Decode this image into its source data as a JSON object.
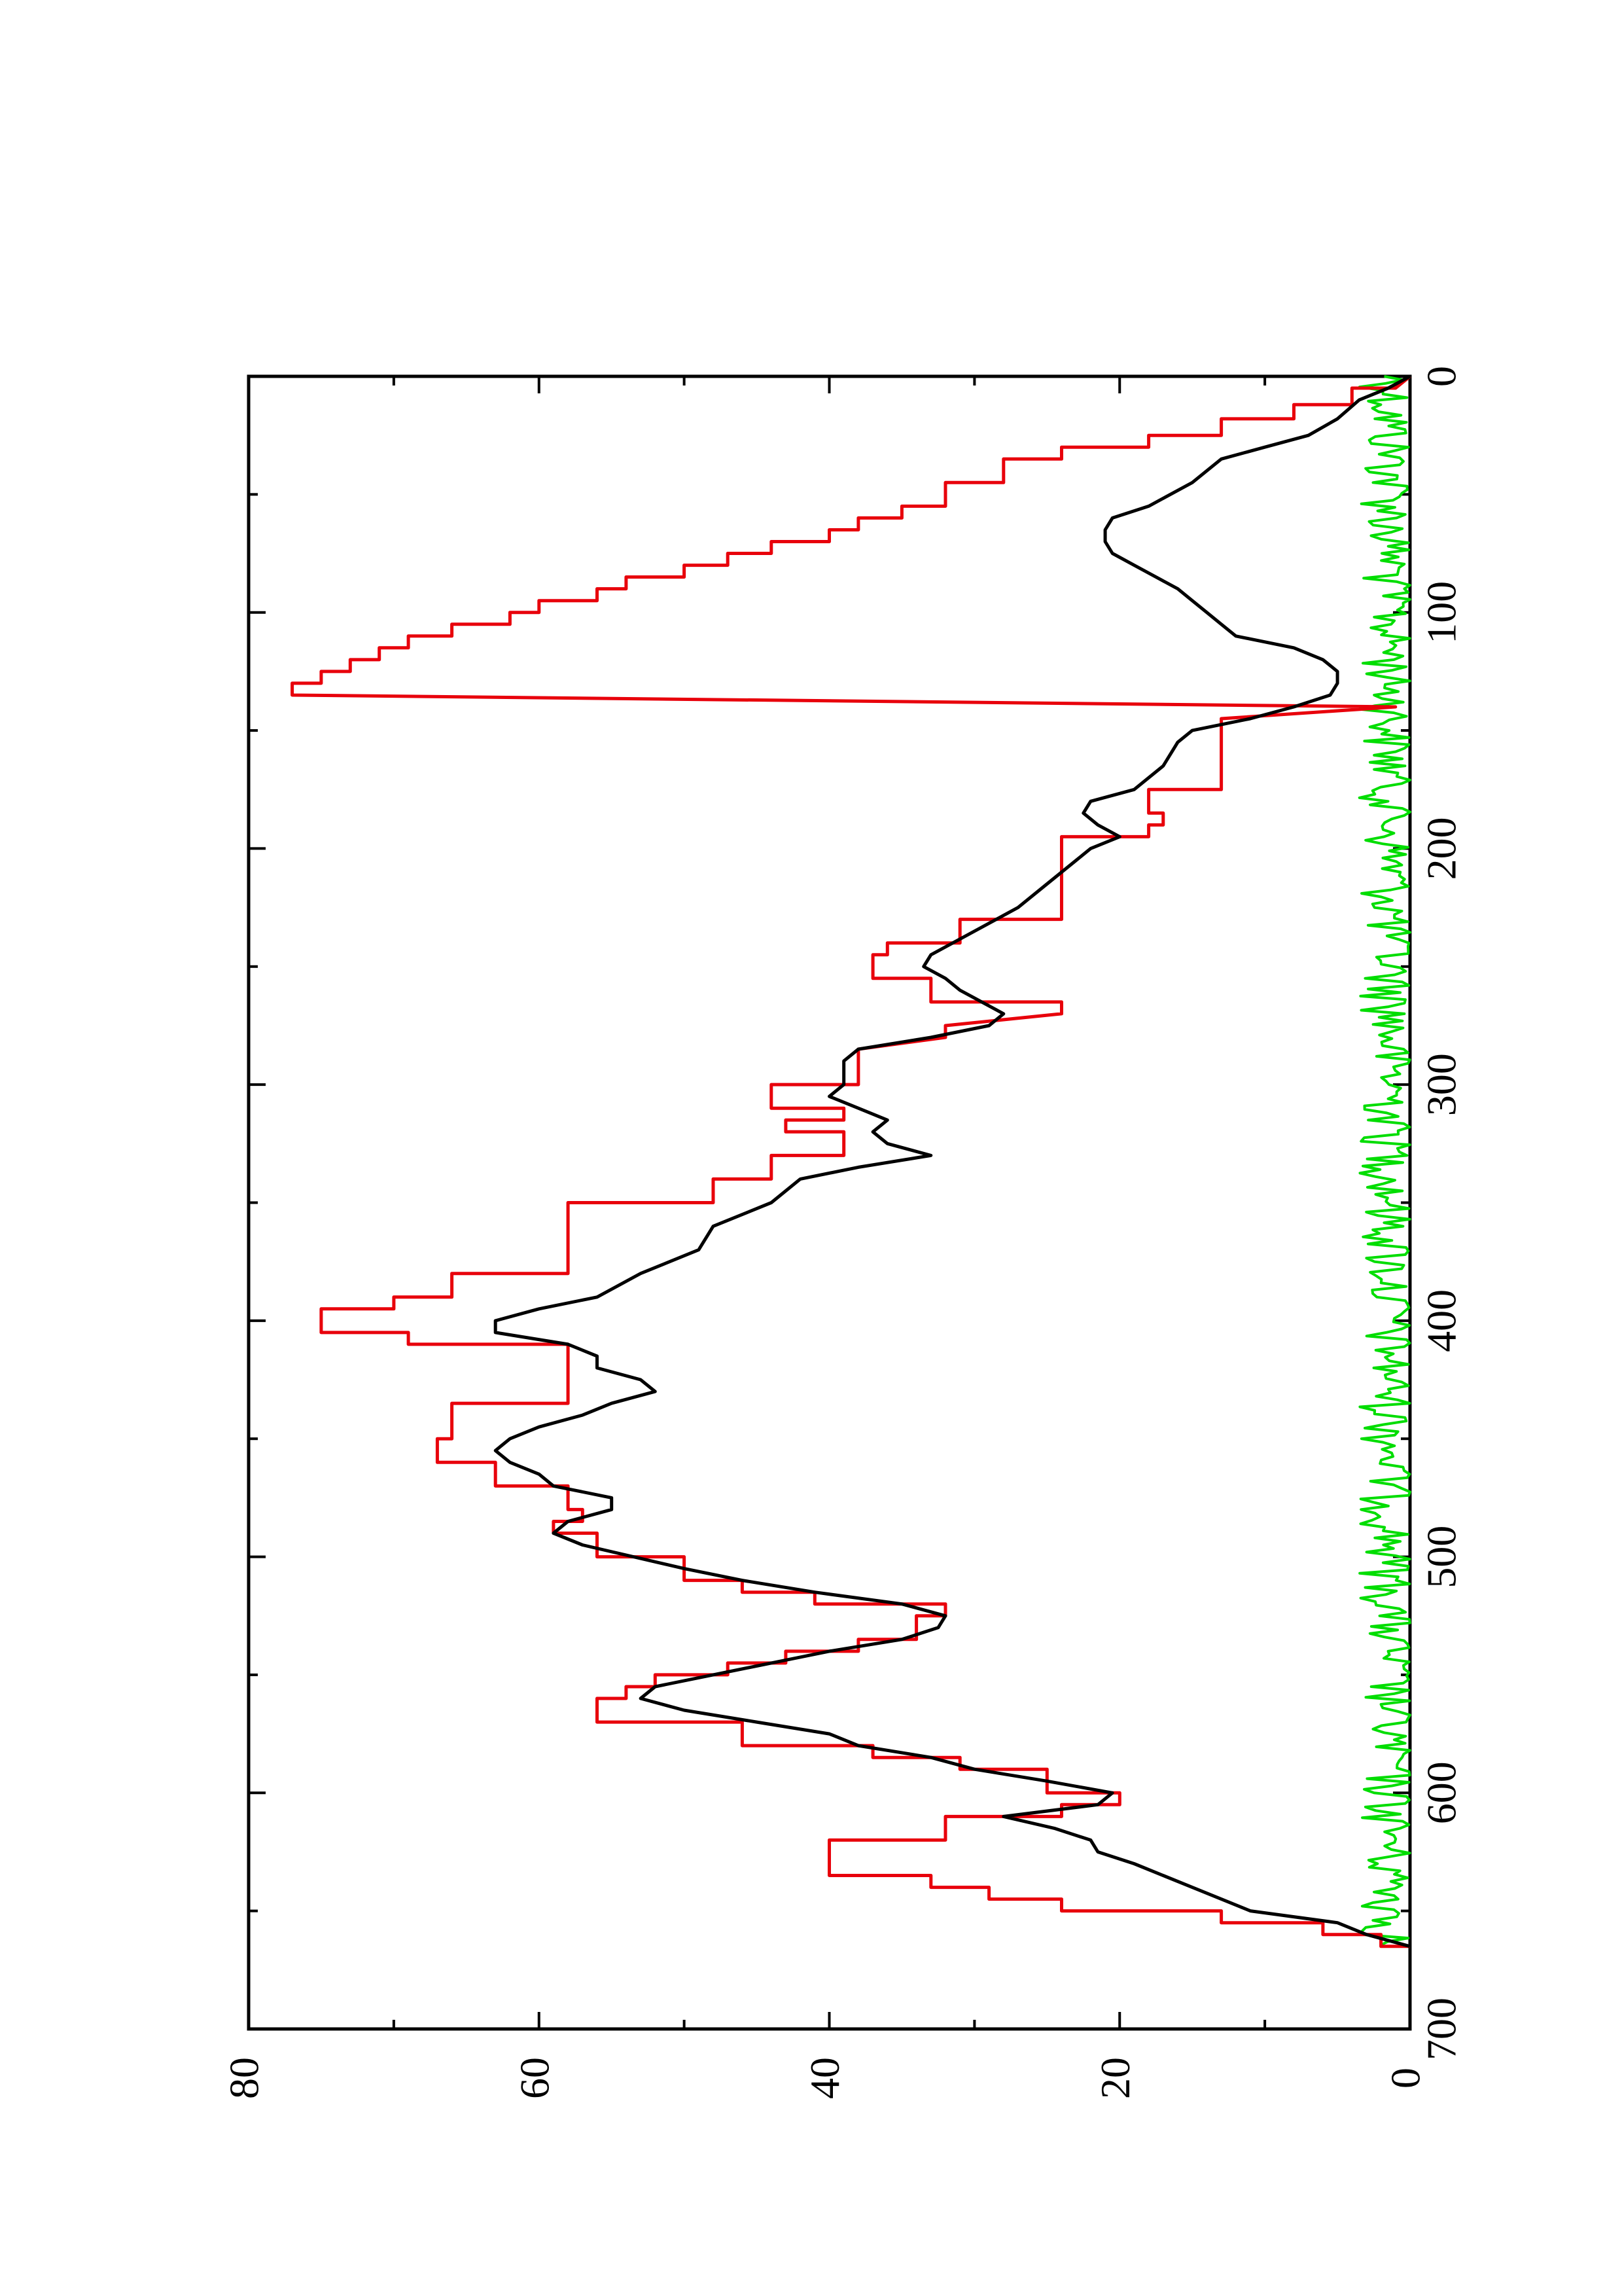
{
  "chart_data": {
    "type": "line",
    "orientation": "rotated-90-ccw",
    "title": "",
    "xlabel": "",
    "ylabel": "",
    "xlim": [
      0,
      700
    ],
    "ylim": [
      0,
      80
    ],
    "x_ticks": [
      0,
      100,
      200,
      300,
      400,
      500,
      600,
      700
    ],
    "x_tick_labels": [
      "0",
      "100",
      "200",
      "300",
      "400",
      "500",
      "600",
      "700"
    ],
    "x_minor_ticks": [
      50,
      150,
      250,
      350,
      450,
      550,
      650
    ],
    "y_ticks": [
      0,
      20,
      40,
      60,
      80
    ],
    "y_tick_labels": [
      "0",
      "20",
      "40",
      "60",
      "80"
    ],
    "y_minor_ticks": [
      10,
      30,
      50,
      70
    ],
    "grid": false,
    "legend": "none",
    "series": [
      {
        "color": "#000000",
        "style": "line",
        "points": [
          [
            0,
            0
          ],
          [
            5,
            1.5
          ],
          [
            10,
            3.5
          ],
          [
            18,
            5
          ],
          [
            25,
            7
          ],
          [
            30,
            10
          ],
          [
            35,
            13
          ],
          [
            45,
            15
          ],
          [
            55,
            18
          ],
          [
            60,
            20.5
          ],
          [
            65,
            21
          ],
          [
            70,
            21
          ],
          [
            75,
            20.5
          ],
          [
            80,
            19
          ],
          [
            85,
            17.5
          ],
          [
            90,
            16
          ],
          [
            95,
            15
          ],
          [
            100,
            14
          ],
          [
            105,
            13
          ],
          [
            110,
            12
          ],
          [
            115,
            8
          ],
          [
            120,
            6
          ],
          [
            125,
            5
          ],
          [
            130,
            5
          ],
          [
            135,
            5.5
          ],
          [
            140,
            8
          ],
          [
            145,
            11
          ],
          [
            150,
            15
          ],
          [
            155,
            16
          ],
          [
            165,
            17
          ],
          [
            175,
            19
          ],
          [
            180,
            22
          ],
          [
            185,
            22.5
          ],
          [
            190,
            21.5
          ],
          [
            195,
            20
          ],
          [
            200,
            22
          ],
          [
            205,
            23
          ],
          [
            215,
            25
          ],
          [
            225,
            27
          ],
          [
            235,
            30
          ],
          [
            245,
            33
          ],
          [
            250,
            33.5
          ],
          [
            255,
            32
          ],
          [
            260,
            31
          ],
          [
            265,
            29.5
          ],
          [
            270,
            28
          ],
          [
            275,
            29
          ],
          [
            280,
            33
          ],
          [
            285,
            38
          ],
          [
            290,
            39
          ],
          [
            300,
            39
          ],
          [
            305,
            40
          ],
          [
            310,
            38
          ],
          [
            315,
            36
          ],
          [
            320,
            37
          ],
          [
            325,
            36
          ],
          [
            330,
            33
          ],
          [
            335,
            38
          ],
          [
            340,
            42
          ],
          [
            350,
            44
          ],
          [
            360,
            48
          ],
          [
            370,
            49
          ],
          [
            380,
            53
          ],
          [
            390,
            56
          ],
          [
            395,
            60
          ],
          [
            400,
            63
          ],
          [
            405,
            63
          ],
          [
            410,
            58
          ],
          [
            415,
            56
          ],
          [
            420,
            56
          ],
          [
            425,
            53
          ],
          [
            430,
            52
          ],
          [
            435,
            55
          ],
          [
            440,
            57
          ],
          [
            445,
            60
          ],
          [
            450,
            62
          ],
          [
            455,
            63
          ],
          [
            460,
            62
          ],
          [
            465,
            60
          ],
          [
            470,
            59
          ],
          [
            475,
            55
          ],
          [
            480,
            55
          ],
          [
            485,
            58
          ],
          [
            490,
            59
          ],
          [
            495,
            57
          ],
          [
            505,
            50
          ],
          [
            510,
            46
          ],
          [
            515,
            41
          ],
          [
            520,
            35
          ],
          [
            525,
            32
          ],
          [
            530,
            32.5
          ],
          [
            535,
            35
          ],
          [
            540,
            40
          ],
          [
            545,
            44
          ],
          [
            550,
            48
          ],
          [
            555,
            52
          ],
          [
            560,
            53
          ],
          [
            565,
            50
          ],
          [
            570,
            45
          ],
          [
            575,
            40
          ],
          [
            580,
            38
          ],
          [
            585,
            33
          ],
          [
            590,
            30
          ],
          [
            595,
            25
          ],
          [
            600,
            20.5
          ],
          [
            605,
            21.5
          ],
          [
            610,
            28
          ],
          [
            615,
            24.5
          ],
          [
            620,
            22
          ],
          [
            625,
            21.5
          ],
          [
            630,
            19
          ],
          [
            640,
            15
          ],
          [
            645,
            13
          ],
          [
            650,
            11
          ],
          [
            655,
            5
          ],
          [
            660,
            3
          ],
          [
            665,
            0
          ]
        ]
      },
      {
        "color": "#e8000b",
        "style": "step",
        "points": [
          [
            0,
            0
          ],
          [
            5,
            1
          ],
          [
            5,
            4
          ],
          [
            12,
            4
          ],
          [
            12,
            8
          ],
          [
            18,
            8
          ],
          [
            18,
            13
          ],
          [
            25,
            13
          ],
          [
            25,
            18
          ],
          [
            30,
            18
          ],
          [
            30,
            24
          ],
          [
            35,
            24
          ],
          [
            35,
            28
          ],
          [
            45,
            28
          ],
          [
            45,
            32
          ],
          [
            55,
            32
          ],
          [
            55,
            35
          ],
          [
            60,
            35
          ],
          [
            60,
            38
          ],
          [
            65,
            38
          ],
          [
            65,
            40
          ],
          [
            70,
            40
          ],
          [
            70,
            44
          ],
          [
            75,
            44
          ],
          [
            75,
            47
          ],
          [
            80,
            47
          ],
          [
            80,
            50
          ],
          [
            85,
            50
          ],
          [
            85,
            54
          ],
          [
            90,
            54
          ],
          [
            90,
            56
          ],
          [
            95,
            56
          ],
          [
            95,
            60
          ],
          [
            100,
            60
          ],
          [
            100,
            62
          ],
          [
            105,
            62
          ],
          [
            105,
            66
          ],
          [
            110,
            66
          ],
          [
            110,
            69
          ],
          [
            115,
            69
          ],
          [
            115,
            71
          ],
          [
            120,
            71
          ],
          [
            120,
            73
          ],
          [
            125,
            73
          ],
          [
            125,
            75
          ],
          [
            130,
            75
          ],
          [
            130,
            77
          ],
          [
            135,
            77
          ],
          [
            140,
            1
          ],
          [
            145,
            13
          ],
          [
            175,
            13
          ],
          [
            175,
            18
          ],
          [
            185,
            18
          ],
          [
            185,
            17
          ],
          [
            190,
            17
          ],
          [
            190,
            18
          ],
          [
            195,
            18
          ],
          [
            195,
            24
          ],
          [
            230,
            24
          ],
          [
            230,
            31
          ],
          [
            240,
            31
          ],
          [
            240,
            36
          ],
          [
            245,
            36
          ],
          [
            245,
            37
          ],
          [
            255,
            37
          ],
          [
            255,
            33
          ],
          [
            265,
            33
          ],
          [
            265,
            24
          ],
          [
            270,
            24
          ],
          [
            275,
            32
          ],
          [
            280,
            32
          ],
          [
            285,
            38
          ],
          [
            290,
            38
          ],
          [
            300,
            38
          ],
          [
            300,
            44
          ],
          [
            310,
            44
          ],
          [
            310,
            39
          ],
          [
            315,
            39
          ],
          [
            315,
            43
          ],
          [
            320,
            43
          ],
          [
            320,
            39
          ],
          [
            330,
            39
          ],
          [
            330,
            44
          ],
          [
            340,
            44
          ],
          [
            340,
            48
          ],
          [
            350,
            48
          ],
          [
            350,
            58
          ],
          [
            380,
            58
          ],
          [
            380,
            66
          ],
          [
            390,
            66
          ],
          [
            390,
            70
          ],
          [
            395,
            70
          ],
          [
            395,
            75
          ],
          [
            405,
            75
          ],
          [
            405,
            69
          ],
          [
            410,
            69
          ],
          [
            410,
            58
          ],
          [
            435,
            58
          ],
          [
            435,
            66
          ],
          [
            450,
            66
          ],
          [
            450,
            67
          ],
          [
            460,
            67
          ],
          [
            460,
            63
          ],
          [
            470,
            63
          ],
          [
            470,
            58
          ],
          [
            480,
            58
          ],
          [
            480,
            57
          ],
          [
            485,
            57
          ],
          [
            485,
            59
          ],
          [
            490,
            59
          ],
          [
            490,
            56
          ],
          [
            500,
            56
          ],
          [
            500,
            50
          ],
          [
            510,
            50
          ],
          [
            510,
            46
          ],
          [
            515,
            46
          ],
          [
            515,
            41
          ],
          [
            520,
            41
          ],
          [
            520,
            32
          ],
          [
            525,
            32
          ],
          [
            525,
            34
          ],
          [
            535,
            34
          ],
          [
            535,
            38
          ],
          [
            540,
            38
          ],
          [
            540,
            43
          ],
          [
            545,
            43
          ],
          [
            545,
            47
          ],
          [
            550,
            47
          ],
          [
            550,
            52
          ],
          [
            555,
            52
          ],
          [
            555,
            54
          ],
          [
            560,
            54
          ],
          [
            560,
            56
          ],
          [
            570,
            56
          ],
          [
            570,
            46
          ],
          [
            580,
            46
          ],
          [
            580,
            37
          ],
          [
            585,
            37
          ],
          [
            585,
            31
          ],
          [
            590,
            31
          ],
          [
            590,
            25
          ],
          [
            600,
            25
          ],
          [
            600,
            20
          ],
          [
            605,
            20
          ],
          [
            605,
            24
          ],
          [
            610,
            24
          ],
          [
            610,
            32
          ],
          [
            620,
            32
          ],
          [
            620,
            40
          ],
          [
            635,
            40
          ],
          [
            635,
            33
          ],
          [
            640,
            33
          ],
          [
            640,
            29
          ],
          [
            645,
            29
          ],
          [
            645,
            24
          ],
          [
            650,
            24
          ],
          [
            650,
            13
          ],
          [
            655,
            13
          ],
          [
            655,
            6
          ],
          [
            660,
            6
          ],
          [
            660,
            2
          ],
          [
            665,
            2
          ],
          [
            665,
            0
          ]
        ]
      },
      {
        "color": "#00dd00",
        "style": "noise",
        "x_start": 0,
        "x_end": 665,
        "y_range": [
          0,
          3.5
        ]
      }
    ]
  }
}
